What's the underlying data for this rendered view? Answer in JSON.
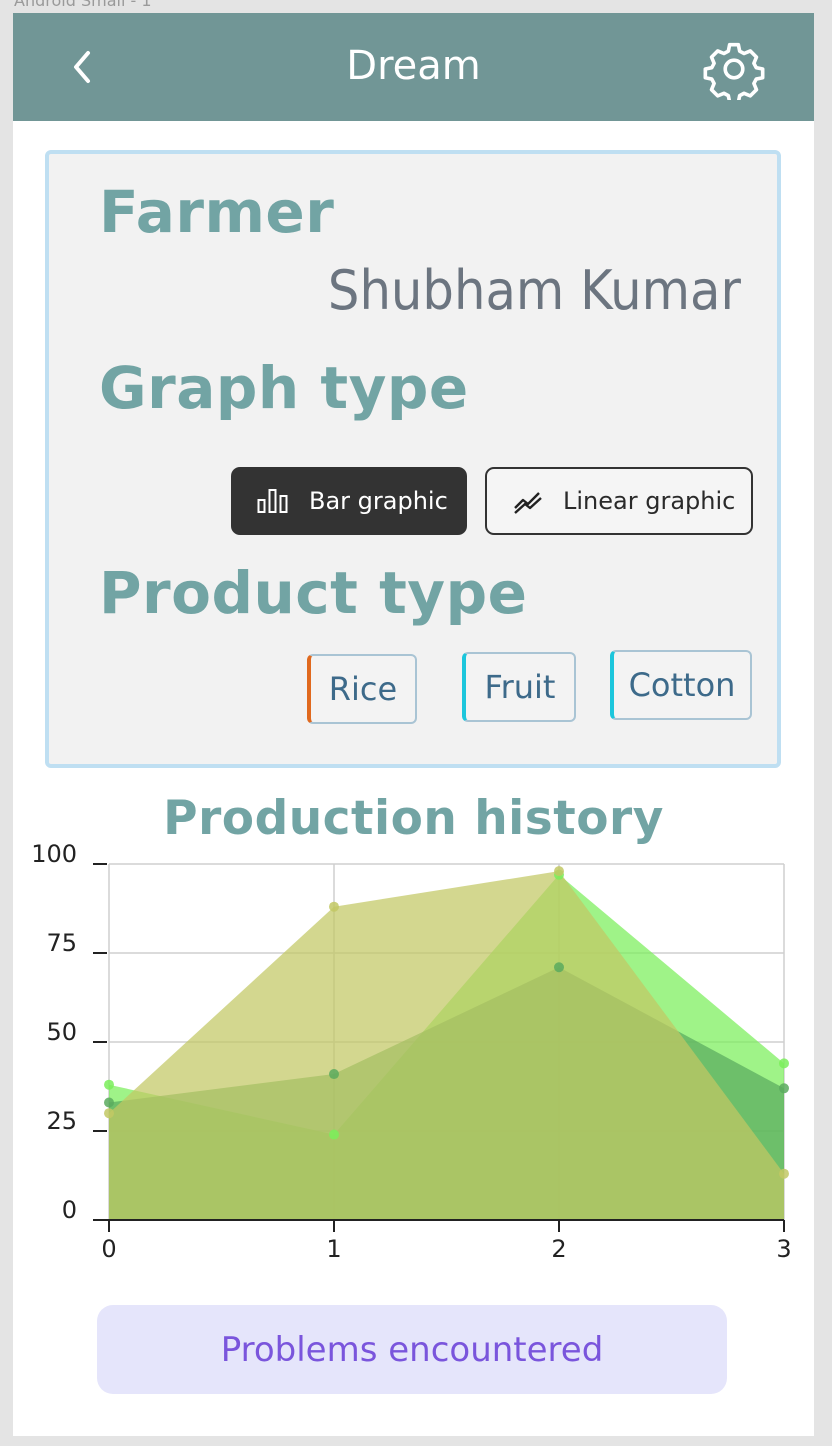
{
  "frame_label": "Android Small - 1",
  "appbar": {
    "title": "Dream",
    "back_icon": "chevron-left-icon",
    "settings_icon": "gear-icon",
    "background": "#719696"
  },
  "farmer": {
    "heading": "Farmer",
    "name": "Shubham Kumar"
  },
  "graph_type": {
    "heading": "Graph type",
    "options": [
      {
        "label": "Bar graphic",
        "icon": "bar-chart-icon",
        "selected": true
      },
      {
        "label": "Linear graphic",
        "icon": "line-chart-icon",
        "selected": false
      }
    ]
  },
  "product_type": {
    "heading": "Product type",
    "options": [
      {
        "label": "Rice",
        "accent": "#e0691e"
      },
      {
        "label": "Fruit",
        "accent": "#1cc6dc"
      },
      {
        "label": "Cotton",
        "accent": "#1cc6dc"
      }
    ]
  },
  "chart_data": {
    "type": "area",
    "title": "Production history",
    "x": [
      0,
      1,
      2,
      3
    ],
    "x_ticks": [
      "0",
      "1",
      "2",
      "3"
    ],
    "y_ticks": [
      "0",
      "25",
      "50",
      "75",
      "100"
    ],
    "ylim": [
      0,
      100
    ],
    "xlim": [
      0,
      3
    ],
    "grid": true,
    "series": [
      {
        "values": [
          38,
          24,
          97,
          44
        ],
        "color": "#7aef5a"
      },
      {
        "values": [
          33,
          41,
          71,
          37
        ],
        "color": "#5aaa5e"
      },
      {
        "values": [
          30,
          88,
          98,
          13
        ],
        "color": "#c2c864"
      }
    ]
  },
  "problems_button": {
    "label": "Problems encountered"
  }
}
